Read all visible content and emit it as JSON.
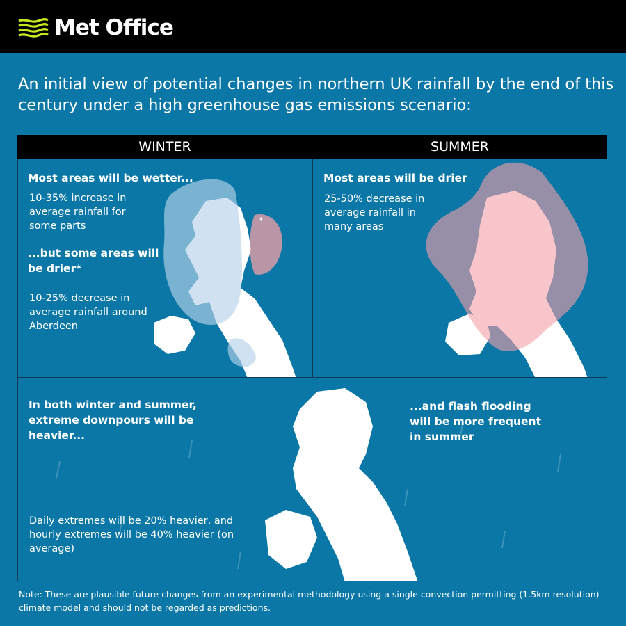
{
  "header": {
    "brand": "Met Office",
    "logo_color": "#c8e61e"
  },
  "title": "An initial view of potential changes in northern UK rainfall by the end of this century under a high greenhouse gas emissions scenario:",
  "seasons": [
    "WINTER",
    "SUMMER"
  ],
  "winter": {
    "heading1": "Most areas will be wetter...",
    "text1": "10-35% increase in average rainfall for some parts",
    "heading2": "...but some areas will be drier*",
    "text2": "10-25% decrease in average rainfall around Aberdeen",
    "asterisk": "*",
    "wetter_color": "#b7d3ea",
    "drier_color": "#f4a0a6"
  },
  "summer": {
    "heading": "Most areas will be drier",
    "text": "25-50% decrease in average rainfall in many areas",
    "drier_color": "#f4a0a6"
  },
  "both": {
    "heading_left": "In both winter and summer, extreme downpours will be heavier...",
    "heading_right": "...and flash flooding will be more frequent in summer",
    "text": "Daily extremes will be 20% heavier, and hourly extremes will be 40% heavier (on average)"
  },
  "note": "Note: These are plausible future changes from an experimental methodology using a single convection permitting (1.5km resolution) climate model and should not be regarded as predictions."
}
